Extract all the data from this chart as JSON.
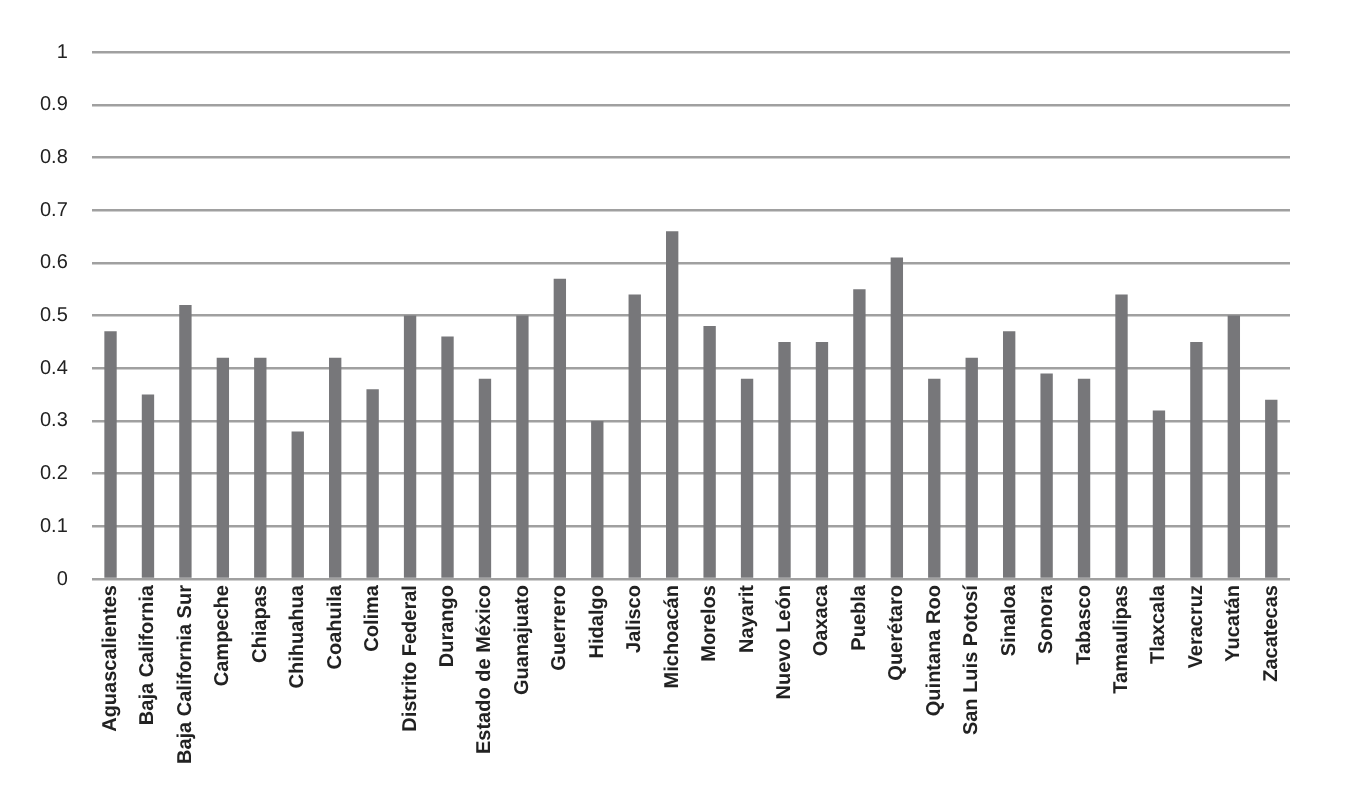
{
  "chart_data": {
    "type": "bar",
    "categories": [
      "Aguascalientes",
      "Baja California",
      "Baja California Sur",
      "Campeche",
      "Chiapas",
      "Chihuahua",
      "Coahuila",
      "Colima",
      "Distrito Federal",
      "Durango",
      "Estado de México",
      "Guanajuato",
      "Guerrero",
      "Hidalgo",
      "Jalisco",
      "Michoacán",
      "Morelos",
      "Nayarit",
      "Nuevo León",
      "Oaxaca",
      "Puebla",
      "Querétaro",
      "Quintana Roo",
      "San Luis Potosí",
      "Sinaloa",
      "Sonora",
      "Tabasco",
      "Tamaulipas",
      "Tlaxcala",
      "Veracruz",
      "Yucatán",
      "Zacatecas"
    ],
    "values": [
      0.47,
      0.35,
      0.52,
      0.42,
      0.42,
      0.28,
      0.42,
      0.36,
      0.5,
      0.46,
      0.38,
      0.5,
      0.57,
      0.3,
      0.54,
      0.66,
      0.48,
      0.38,
      0.45,
      0.45,
      0.55,
      0.61,
      0.38,
      0.42,
      0.47,
      0.39,
      0.38,
      0.54,
      0.32,
      0.45,
      0.5,
      0.34
    ],
    "color": "#77777a",
    "ylim": [
      0,
      1
    ],
    "yticks": [
      0,
      0.1,
      0.2,
      0.3,
      0.4,
      0.5,
      0.6,
      0.7,
      0.8,
      0.9,
      1
    ],
    "grid": "y",
    "legend": false
  }
}
